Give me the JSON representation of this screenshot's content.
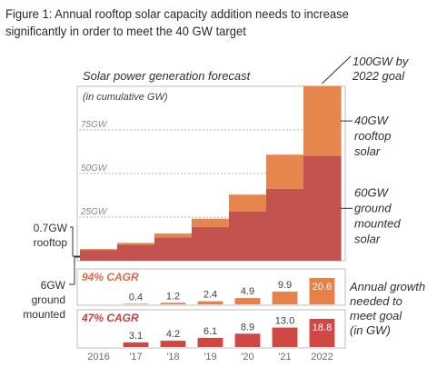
{
  "figure": {
    "title": "Figure 1: Annual rooftop solar capacity addition needs to increase significantly in order to meet the 40 GW target"
  },
  "colors": {
    "ground": "#c4524e",
    "rooftop": "#e6854c",
    "growth_rooftop": "#e8804a",
    "growth_ground": "#d04844",
    "cagr_rooftop": "#e2674a",
    "cagr_ground": "#c9403a",
    "panel_border": "#bdbdbd",
    "grid": "#9a9a9a"
  },
  "chart_data": [
    {
      "type": "bar",
      "stacked": true,
      "title": "Solar power generation forecast",
      "subtitle": "(in cumulative GW)",
      "categories": [
        "2016",
        "'17",
        "'18",
        "'19",
        "'20",
        "'21",
        "2022"
      ],
      "series": [
        {
          "name": "ground mounted solar",
          "values": [
            6,
            9.1,
            13.3,
            19.4,
            28.3,
            41.3,
            60.1
          ]
        },
        {
          "name": "rooftop solar",
          "values": [
            0.7,
            1.1,
            2.3,
            4.7,
            9.6,
            19.5,
            40.1
          ]
        }
      ],
      "ylim": [
        0,
        100
      ],
      "gridlines": [
        25,
        50,
        75
      ],
      "tick_labels": [
        "25GW",
        "50GW",
        "75GW"
      ],
      "annotations": {
        "goal": "100GW by 2022 goal",
        "rooftop_label": "40GW rooftop solar",
        "ground_label": "60GW ground mounted solar",
        "start_rooftop": "0.7GW rooftop",
        "start_ground": "6GW ground mounted"
      }
    },
    {
      "type": "bar",
      "title": "94% CAGR",
      "categories": [
        "'17",
        "'18",
        "'19",
        "'20",
        "'21",
        "2022"
      ],
      "series": [
        {
          "name": "rooftop",
          "values": [
            0.4,
            1.2,
            2.4,
            4.9,
            9.9,
            20.6
          ]
        }
      ],
      "data_labels": [
        "0.4",
        "1.2",
        "2.4",
        "4.9",
        "9.9",
        "20.6"
      ]
    },
    {
      "type": "bar",
      "title": "47% CAGR",
      "categories": [
        "'17",
        "'18",
        "'19",
        "'20",
        "'21",
        "2022"
      ],
      "series": [
        {
          "name": "ground mounted",
          "values": [
            3.1,
            4.2,
            6.1,
            8.9,
            13.0,
            18.8
          ]
        }
      ],
      "data_labels": [
        "3.1",
        "4.2",
        "6.1",
        "8.9",
        "13.0",
        "18.8"
      ]
    }
  ],
  "growth_note": "Annual growth needed to meet goal (in GW)"
}
